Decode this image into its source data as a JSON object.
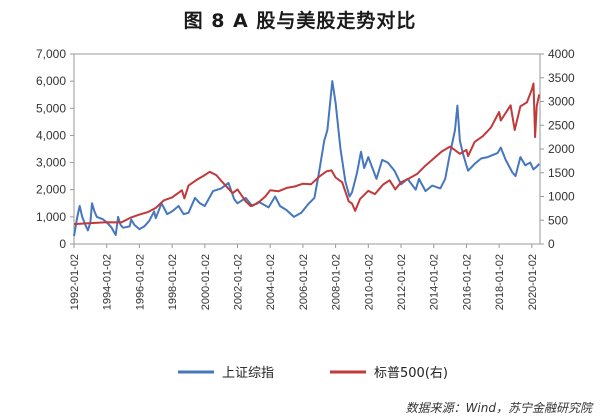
{
  "chart_data": {
    "type": "line",
    "title": "图 8 A 股与美股走势对比",
    "source": "数据来源：Wind，苏宁金融研究院",
    "legend_position": "bottom",
    "grid": false,
    "y_left": {
      "min": 0,
      "max": 7000,
      "ticks": [
        "0",
        "1,000",
        "2,000",
        "3,000",
        "4,000",
        "5,000",
        "6,000",
        "7,000"
      ]
    },
    "y_right": {
      "min": 0,
      "max": 4000,
      "ticks": [
        "0",
        "500",
        "1000",
        "1500",
        "2000",
        "2500",
        "3000",
        "3500",
        "4000"
      ]
    },
    "x_ticks": [
      "1992-01-02",
      "1994-01-02",
      "1996-01-02",
      "1998-01-02",
      "2000-01-02",
      "2002-01-02",
      "2004-01-02",
      "2006-01-02",
      "2008-01-02",
      "2010-01-02",
      "2012-01-02",
      "2014-01-02",
      "2016-01-02",
      "2018-01-02",
      "2020-01-02"
    ],
    "series": [
      {
        "name": "上证综指",
        "axis": "left",
        "color": "#4677BE",
        "points": [
          [
            1992.0,
            290
          ],
          [
            1992.2,
            1000
          ],
          [
            1992.35,
            1400
          ],
          [
            1992.5,
            1000
          ],
          [
            1992.7,
            700
          ],
          [
            1992.85,
            500
          ],
          [
            1993.0,
            800
          ],
          [
            1993.1,
            1500
          ],
          [
            1993.25,
            1200
          ],
          [
            1993.4,
            1000
          ],
          [
            1993.6,
            950
          ],
          [
            1993.8,
            900
          ],
          [
            1994.0,
            800
          ],
          [
            1994.3,
            600
          ],
          [
            1994.55,
            330
          ],
          [
            1994.7,
            1000
          ],
          [
            1994.85,
            700
          ],
          [
            1995.0,
            600
          ],
          [
            1995.4,
            650
          ],
          [
            1995.5,
            900
          ],
          [
            1995.7,
            700
          ],
          [
            1996.0,
            550
          ],
          [
            1996.3,
            650
          ],
          [
            1996.6,
            850
          ],
          [
            1996.9,
            1200
          ],
          [
            1997.0,
            950
          ],
          [
            1997.35,
            1500
          ],
          [
            1997.7,
            1100
          ],
          [
            1998.0,
            1200
          ],
          [
            1998.4,
            1400
          ],
          [
            1998.7,
            1100
          ],
          [
            1999.0,
            1150
          ],
          [
            1999.4,
            1700
          ],
          [
            1999.7,
            1500
          ],
          [
            2000.0,
            1400
          ],
          [
            2000.5,
            1950
          ],
          [
            2001.0,
            2050
          ],
          [
            2001.45,
            2250
          ],
          [
            2001.8,
            1650
          ],
          [
            2002.0,
            1500
          ],
          [
            2002.5,
            1700
          ],
          [
            2002.9,
            1400
          ],
          [
            2003.3,
            1550
          ],
          [
            2003.9,
            1350
          ],
          [
            2004.3,
            1750
          ],
          [
            2004.6,
            1400
          ],
          [
            2005.0,
            1250
          ],
          [
            2005.45,
            1000
          ],
          [
            2005.9,
            1150
          ],
          [
            2006.3,
            1450
          ],
          [
            2006.7,
            1700
          ],
          [
            2007.0,
            2700
          ],
          [
            2007.3,
            3800
          ],
          [
            2007.5,
            4200
          ],
          [
            2007.8,
            6000
          ],
          [
            2008.0,
            5200
          ],
          [
            2008.3,
            3500
          ],
          [
            2008.6,
            2300
          ],
          [
            2008.85,
            1750
          ],
          [
            2009.0,
            1900
          ],
          [
            2009.3,
            2600
          ],
          [
            2009.55,
            3400
          ],
          [
            2009.75,
            2800
          ],
          [
            2010.0,
            3200
          ],
          [
            2010.5,
            2400
          ],
          [
            2010.85,
            3100
          ],
          [
            2011.2,
            3000
          ],
          [
            2011.6,
            2700
          ],
          [
            2012.0,
            2200
          ],
          [
            2012.4,
            2400
          ],
          [
            2012.9,
            2000
          ],
          [
            2013.1,
            2400
          ],
          [
            2013.5,
            1950
          ],
          [
            2013.9,
            2150
          ],
          [
            2014.4,
            2050
          ],
          [
            2014.7,
            2400
          ],
          [
            2014.95,
            3200
          ],
          [
            2015.3,
            4200
          ],
          [
            2015.45,
            5100
          ],
          [
            2015.6,
            3800
          ],
          [
            2015.8,
            3300
          ],
          [
            2016.0,
            2900
          ],
          [
            2016.1,
            2700
          ],
          [
            2016.5,
            2950
          ],
          [
            2016.9,
            3150
          ],
          [
            2017.3,
            3200
          ],
          [
            2017.9,
            3350
          ],
          [
            2018.1,
            3550
          ],
          [
            2018.4,
            3100
          ],
          [
            2018.8,
            2650
          ],
          [
            2019.0,
            2500
          ],
          [
            2019.3,
            3200
          ],
          [
            2019.6,
            2900
          ],
          [
            2019.9,
            3000
          ],
          [
            2020.1,
            2750
          ],
          [
            2020.3,
            2850
          ],
          [
            2020.45,
            2950
          ]
        ]
      },
      {
        "name": "标普500(右)",
        "axis": "right",
        "color": "#C0393B",
        "points": [
          [
            1992.0,
            420
          ],
          [
            1993.0,
            440
          ],
          [
            1994.0,
            460
          ],
          [
            1994.9,
            455
          ],
          [
            1995.5,
            560
          ],
          [
            1996.0,
            620
          ],
          [
            1996.5,
            670
          ],
          [
            1997.0,
            760
          ],
          [
            1997.5,
            920
          ],
          [
            1998.0,
            980
          ],
          [
            1998.6,
            1130
          ],
          [
            1998.75,
            960
          ],
          [
            1999.0,
            1230
          ],
          [
            1999.5,
            1350
          ],
          [
            2000.0,
            1450
          ],
          [
            2000.3,
            1520
          ],
          [
            2000.7,
            1450
          ],
          [
            2001.0,
            1330
          ],
          [
            2001.7,
            1070
          ],
          [
            2002.0,
            1150
          ],
          [
            2002.5,
            900
          ],
          [
            2002.8,
            800
          ],
          [
            2003.2,
            850
          ],
          [
            2003.7,
            1000
          ],
          [
            2004.0,
            1130
          ],
          [
            2004.5,
            1110
          ],
          [
            2005.0,
            1180
          ],
          [
            2005.5,
            1210
          ],
          [
            2006.0,
            1270
          ],
          [
            2006.5,
            1260
          ],
          [
            2007.0,
            1420
          ],
          [
            2007.45,
            1530
          ],
          [
            2007.75,
            1550
          ],
          [
            2008.0,
            1400
          ],
          [
            2008.4,
            1300
          ],
          [
            2008.8,
            900
          ],
          [
            2009.0,
            850
          ],
          [
            2009.2,
            700
          ],
          [
            2009.5,
            950
          ],
          [
            2010.0,
            1120
          ],
          [
            2010.4,
            1050
          ],
          [
            2010.9,
            1250
          ],
          [
            2011.3,
            1340
          ],
          [
            2011.65,
            1150
          ],
          [
            2012.0,
            1300
          ],
          [
            2012.5,
            1380
          ],
          [
            2013.0,
            1480
          ],
          [
            2013.5,
            1650
          ],
          [
            2014.0,
            1800
          ],
          [
            2014.5,
            1950
          ],
          [
            2015.0,
            2050
          ],
          [
            2015.6,
            1900
          ],
          [
            2016.0,
            1980
          ],
          [
            2016.1,
            1850
          ],
          [
            2016.5,
            2150
          ],
          [
            2017.0,
            2270
          ],
          [
            2017.5,
            2450
          ],
          [
            2018.0,
            2780
          ],
          [
            2018.1,
            2600
          ],
          [
            2018.7,
            2920
          ],
          [
            2018.95,
            2400
          ],
          [
            2019.3,
            2900
          ],
          [
            2019.7,
            2980
          ],
          [
            2020.0,
            3250
          ],
          [
            2020.1,
            3380
          ],
          [
            2020.2,
            2250
          ],
          [
            2020.3,
            2900
          ],
          [
            2020.45,
            3150
          ]
        ]
      }
    ]
  }
}
